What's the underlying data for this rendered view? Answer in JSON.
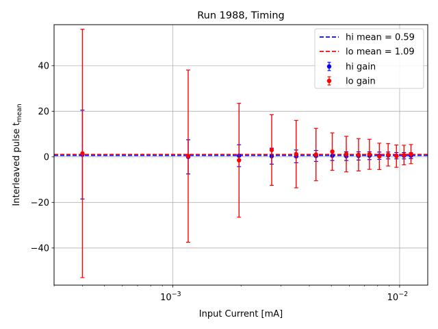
{
  "chart_data": {
    "type": "scatter",
    "title": "Run 1988, Timing",
    "xlabel": "Input Current [mA]",
    "ylabel": "Interleaved pulse t",
    "ylabel_sub": "mean",
    "xscale": "log",
    "xlim": [
      0.0003,
      0.0133
    ],
    "ylim": [
      -56.3,
      58.0
    ],
    "grid": true,
    "x_major_ticks": [
      {
        "value": 0.001,
        "base": "10",
        "exp": "−3"
      },
      {
        "value": 0.01,
        "base": "10",
        "exp": "−2"
      }
    ],
    "y_ticks": [
      {
        "value": -40,
        "label": "−40"
      },
      {
        "value": -20,
        "label": "−20"
      },
      {
        "value": 0,
        "label": "0"
      },
      {
        "value": 20,
        "label": "20"
      },
      {
        "value": 40,
        "label": "40"
      }
    ],
    "legend_position": "top-right",
    "series": [
      {
        "name": "hi gain",
        "kind": "errorbar",
        "color": "#0000ff",
        "x": [
          0.0004,
          0.00117,
          0.00196,
          0.00273,
          0.0035,
          0.00428,
          0.00505,
          0.00582,
          0.00659,
          0.00736,
          0.00814,
          0.0089,
          0.00968,
          0.01045,
          0.01122
        ],
        "y": [
          1.0,
          0.0,
          0.5,
          0.3,
          0.2,
          0.4,
          0.5,
          0.3,
          0.4,
          0.5,
          0.5,
          0.6,
          0.5,
          0.5,
          0.5
        ],
        "yerr": [
          19.5,
          7.5,
          4.8,
          3.5,
          2.8,
          2.4,
          2.1,
          1.9,
          1.8,
          1.7,
          1.6,
          1.5,
          1.4,
          1.4,
          1.3
        ]
      },
      {
        "name": "lo gain",
        "kind": "errorbar",
        "color": "#ff0000",
        "x": [
          0.0004,
          0.00117,
          0.00196,
          0.00273,
          0.0035,
          0.00428,
          0.00505,
          0.00582,
          0.00659,
          0.00736,
          0.00814,
          0.0089,
          0.00968,
          0.01045,
          0.01122
        ],
        "y": [
          1.5,
          0.3,
          -1.5,
          3.0,
          1.2,
          1.0,
          2.3,
          1.2,
          0.9,
          1.1,
          0.2,
          0.9,
          0.3,
          0.8,
          1.2
        ],
        "yerr": [
          54.5,
          37.8,
          25.0,
          15.5,
          14.8,
          11.5,
          8.2,
          7.8,
          7.1,
          6.6,
          5.8,
          4.9,
          4.9,
          4.3,
          4.2
        ]
      },
      {
        "name": "hi mean = 0.59",
        "kind": "hline",
        "value": 0.59,
        "color": "#0000ff"
      },
      {
        "name": "lo mean = 1.09",
        "kind": "hline",
        "value": 1.09,
        "color": "#ff0000"
      }
    ]
  }
}
